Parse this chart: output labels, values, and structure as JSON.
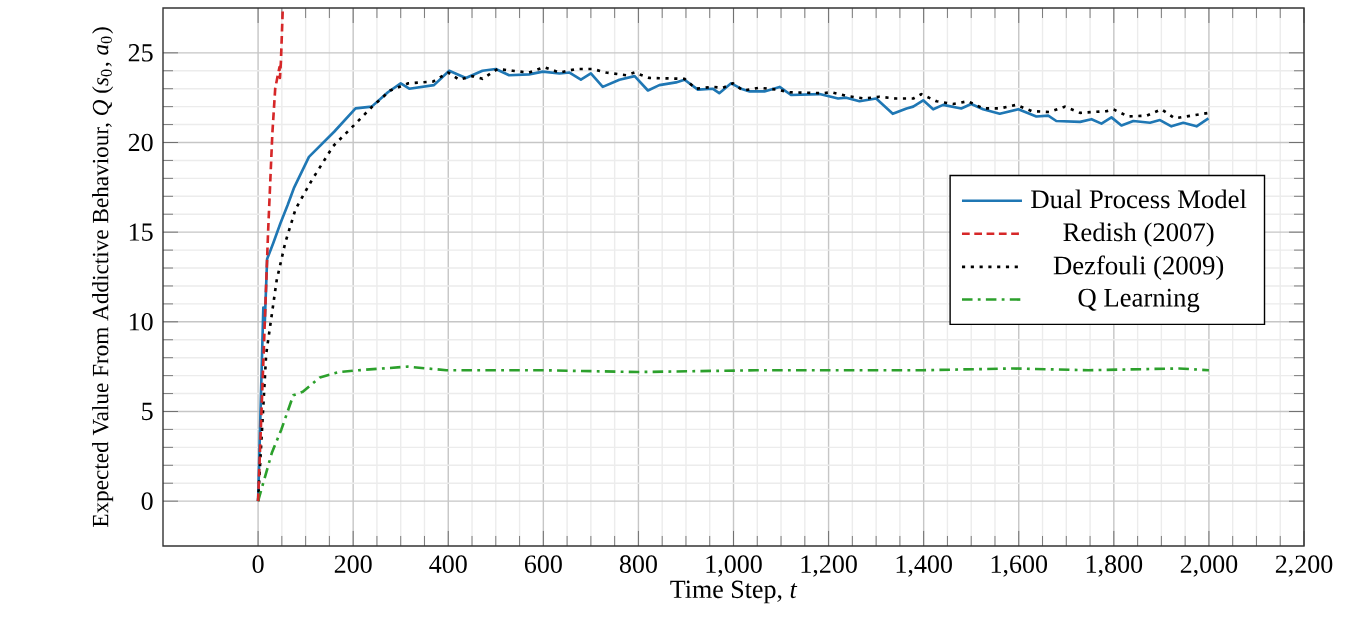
{
  "chart_data": {
    "type": "line",
    "xlabel": "Time Step, *t*",
    "ylabel": "Expected Value From Addictive Behaviour, *Q* (*s*$_{0}$, *a*$_{0}$)",
    "xlim": [
      -200,
      2200
    ],
    "ylim": [
      -2.5,
      27.5
    ],
    "xticks": [
      0,
      200,
      400,
      600,
      800,
      {
        "value": 1000,
        "label": "1,000"
      },
      {
        "value": 1200,
        "label": "1,200"
      },
      {
        "value": 1400,
        "label": "1,400"
      },
      {
        "value": 1600,
        "label": "1,600"
      },
      {
        "value": 1800,
        "label": "1,800"
      },
      {
        "value": 2000,
        "label": "2,000"
      },
      {
        "value": 2200,
        "label": "2,200"
      }
    ],
    "yticks": [
      0,
      5,
      10,
      15,
      20,
      25
    ],
    "grid": true,
    "legend": "right",
    "marker": "none",
    "series": [
      {
        "name": "Dual Process Model",
        "color": "#1f77b4",
        "line_style": "solid",
        "x": [
          0,
          11,
          14,
          19,
          32,
          47,
          62,
          76,
          107,
          160,
          205,
          239,
          273,
          300,
          318,
          370,
          402,
          437,
          472,
          500,
          528,
          570,
          599,
          634,
          655,
          679,
          700,
          725,
          760,
          792,
          820,
          844,
          879,
          897,
          925,
          956,
          970,
          995,
          1016,
          1034,
          1065,
          1097,
          1121,
          1181,
          1220,
          1237,
          1265,
          1300,
          1335,
          1364,
          1378,
          1399,
          1420,
          1441,
          1479,
          1500,
          1525,
          1560,
          1599,
          1637,
          1662,
          1679,
          1729,
          1753,
          1774,
          1795,
          1816,
          1841,
          1876,
          1897,
          1921,
          1946,
          1974,
          1999
        ],
        "values": [
          0,
          10.8,
          9.9,
          13.5,
          14.4,
          15.5,
          16.5,
          17.5,
          19.2,
          20.6,
          21.9,
          22.0,
          22.8,
          23.3,
          23.0,
          23.2,
          24.0,
          23.6,
          24.0,
          24.1,
          23.75,
          23.8,
          23.95,
          23.85,
          23.9,
          23.5,
          23.85,
          23.1,
          23.5,
          23.7,
          22.9,
          23.2,
          23.35,
          23.5,
          22.95,
          23.0,
          22.75,
          23.3,
          23.0,
          22.85,
          22.85,
          23.1,
          22.65,
          22.7,
          22.45,
          22.5,
          22.3,
          22.45,
          21.6,
          21.9,
          22.0,
          22.35,
          21.85,
          22.1,
          21.9,
          22.15,
          21.85,
          21.6,
          21.85,
          21.45,
          21.5,
          21.2,
          21.15,
          21.3,
          21.05,
          21.4,
          20.95,
          21.2,
          21.1,
          21.25,
          20.9,
          21.1,
          20.9,
          21.35
        ]
      },
      {
        "name": "Redish (2007)",
        "color": "#d62728",
        "line_style": "dashed",
        "x": [
          0,
          10,
          21,
          30,
          36,
          41,
          45,
          46,
          48,
          52
        ],
        "values": [
          0,
          7,
          15,
          20.5,
          23,
          23.7,
          24.2,
          23.6,
          24.5,
          27.5
        ]
      },
      {
        "name": "Dezfouli (2009)",
        "color": "#000000",
        "line_style": "dotted",
        "x": [
          0,
          17,
          39,
          57,
          79,
          113,
          158,
          203,
          240,
          278,
          316,
          368,
          400,
          423,
          451,
          472,
          504,
          535,
          570,
          602,
          634,
          669,
          704,
          732,
          774,
          792,
          823,
          897,
          921,
          956,
          978,
          999,
          1020,
          1055,
          1090,
          1118,
          1188,
          1206,
          1237,
          1276,
          1307,
          1342,
          1378,
          1395,
          1427,
          1462,
          1493,
          1525,
          1560,
          1595,
          1627,
          1665,
          1697,
          1729,
          1785,
          1799,
          1830,
          1869,
          1900,
          1928,
          1964,
          1999
        ],
        "values": [
          0,
          8.2,
          12.3,
          14.4,
          16.3,
          17.9,
          19.8,
          21.0,
          22.0,
          22.9,
          23.3,
          23.4,
          23.9,
          23.5,
          23.7,
          23.55,
          24.1,
          24.0,
          23.9,
          24.2,
          23.9,
          24.1,
          24.1,
          23.9,
          23.75,
          23.9,
          23.6,
          23.55,
          23.0,
          23.1,
          23.05,
          23.3,
          22.9,
          23.05,
          22.95,
          22.8,
          22.75,
          22.8,
          22.6,
          22.45,
          22.55,
          22.45,
          22.45,
          22.7,
          22.3,
          22.15,
          22.3,
          21.9,
          21.9,
          22.1,
          21.75,
          21.7,
          22.0,
          21.65,
          21.75,
          21.85,
          21.45,
          21.5,
          21.85,
          21.35,
          21.5,
          21.65
        ]
      },
      {
        "name": "Q Learning",
        "color": "#2ca02c",
        "line_style": "dashdot",
        "x": [
          0,
          29,
          49,
          74,
          94,
          130,
          170,
          211,
          315,
          396,
          597,
          799,
          1048,
          1398,
          1588,
          1747,
          1937,
          2000
        ],
        "values": [
          0,
          2.7,
          4.0,
          5.9,
          6.1,
          6.9,
          7.2,
          7.3,
          7.5,
          7.3,
          7.3,
          7.2,
          7.3,
          7.3,
          7.4,
          7.3,
          7.4,
          7.3
        ]
      }
    ]
  }
}
